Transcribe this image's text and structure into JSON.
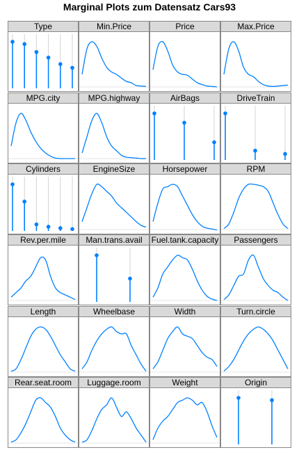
{
  "title": "Marginal Plots zum Datensatz Cars93",
  "colors": {
    "series": "#0080ff",
    "guide": "#d3d3d3",
    "strip_bg": "#d9d9d9",
    "border": "#888888"
  },
  "chart_data": [
    {
      "type": "bar",
      "title": "Type",
      "values": [
        1.0,
        0.95,
        0.78,
        0.66,
        0.52,
        0.44
      ]
    },
    {
      "type": "line",
      "title": "Min.Price",
      "values": [
        0.3,
        0.85,
        1.0,
        0.9,
        0.65,
        0.45,
        0.35,
        0.3,
        0.22,
        0.15,
        0.12,
        0.06,
        0.05,
        0.04
      ]
    },
    {
      "type": "line",
      "title": "Price",
      "values": [
        0.4,
        0.9,
        1.0,
        0.8,
        0.5,
        0.35,
        0.3,
        0.28,
        0.2,
        0.12,
        0.08,
        0.05,
        0.04,
        0.03
      ]
    },
    {
      "type": "line",
      "title": "Max.Price",
      "values": [
        0.3,
        0.85,
        1.0,
        0.8,
        0.45,
        0.3,
        0.25,
        0.15,
        0.08,
        0.05,
        0.04,
        0.05,
        0.06,
        0.07
      ]
    },
    {
      "type": "line",
      "title": "MPG.city",
      "values": [
        0.3,
        0.8,
        1.0,
        0.85,
        0.6,
        0.4,
        0.25,
        0.15,
        0.08,
        0.04,
        0.03,
        0.03,
        0.03,
        0.03
      ]
    },
    {
      "type": "line",
      "title": "MPG.highway",
      "values": [
        0.15,
        0.5,
        0.85,
        1.0,
        0.8,
        0.5,
        0.3,
        0.2,
        0.1,
        0.06,
        0.05,
        0.04,
        0.03,
        0.03
      ]
    },
    {
      "type": "bar",
      "title": "AirBags",
      "values": [
        1.0,
        0.8,
        0.38
      ]
    },
    {
      "type": "bar",
      "title": "DriveTrain",
      "values": [
        1.0,
        0.2,
        0.13
      ]
    },
    {
      "type": "bar",
      "title": "Cylinders",
      "values": [
        1.0,
        0.63,
        0.14,
        0.09,
        0.06,
        0.04
      ]
    },
    {
      "type": "line",
      "title": "EngineSize",
      "values": [
        0.2,
        0.5,
        0.8,
        1.0,
        0.95,
        0.85,
        0.75,
        0.6,
        0.5,
        0.4,
        0.3,
        0.2,
        0.12,
        0.08
      ]
    },
    {
      "type": "line",
      "title": "Horsepower",
      "values": [
        0.2,
        0.6,
        0.9,
        0.95,
        1.0,
        0.95,
        0.75,
        0.55,
        0.35,
        0.2,
        0.1,
        0.06,
        0.04,
        0.02
      ]
    },
    {
      "type": "line",
      "title": "RPM",
      "values": [
        0.05,
        0.15,
        0.4,
        0.7,
        0.9,
        1.0,
        1.0,
        0.98,
        0.95,
        0.85,
        0.6,
        0.35,
        0.15,
        0.05
      ]
    },
    {
      "type": "line",
      "title": "Rev.per.mile",
      "values": [
        0.1,
        0.2,
        0.3,
        0.45,
        0.55,
        0.75,
        0.95,
        0.9,
        0.55,
        0.3,
        0.2,
        0.15,
        0.1,
        0.05
      ]
    },
    {
      "type": "bar",
      "title": "Man.trans.avail",
      "values": [
        1.0,
        0.5
      ]
    },
    {
      "type": "line",
      "title": "Fuel.tank.capacity",
      "values": [
        0.1,
        0.3,
        0.6,
        0.75,
        0.9,
        1.0,
        0.95,
        0.9,
        0.7,
        0.45,
        0.25,
        0.12,
        0.06,
        0.03
      ]
    },
    {
      "type": "line",
      "title": "Passengers",
      "values": [
        0.05,
        0.15,
        0.35,
        0.55,
        0.6,
        0.9,
        1.0,
        0.75,
        0.5,
        0.35,
        0.25,
        0.2,
        0.1,
        0.03
      ]
    },
    {
      "type": "line",
      "title": "Length",
      "values": [
        0.05,
        0.1,
        0.3,
        0.55,
        0.8,
        0.95,
        1.0,
        0.95,
        0.8,
        0.6,
        0.4,
        0.25,
        0.1,
        0.05
      ]
    },
    {
      "type": "line",
      "title": "Wheelbase",
      "values": [
        0.1,
        0.25,
        0.5,
        0.7,
        0.85,
        0.95,
        1.0,
        0.9,
        0.85,
        0.85,
        0.6,
        0.4,
        0.2,
        0.05
      ]
    },
    {
      "type": "line",
      "title": "Width",
      "values": [
        0.1,
        0.25,
        0.5,
        0.75,
        0.9,
        1.0,
        0.85,
        0.8,
        0.75,
        0.6,
        0.45,
        0.35,
        0.3,
        0.15
      ]
    },
    {
      "type": "line",
      "title": "Turn.circle",
      "values": [
        0.05,
        0.15,
        0.3,
        0.5,
        0.7,
        0.85,
        0.95,
        1.0,
        0.95,
        0.85,
        0.7,
        0.5,
        0.3,
        0.1
      ]
    },
    {
      "type": "line",
      "title": "Rear.seat.room",
      "values": [
        0.05,
        0.1,
        0.25,
        0.45,
        0.7,
        0.95,
        1.0,
        0.9,
        0.8,
        0.6,
        0.35,
        0.2,
        0.1,
        0.05
      ]
    },
    {
      "type": "line",
      "title": "Luggage.room",
      "values": [
        0.05,
        0.1,
        0.3,
        0.55,
        0.75,
        0.85,
        1.0,
        0.8,
        0.6,
        0.7,
        0.55,
        0.35,
        0.2,
        0.05
      ]
    },
    {
      "type": "line",
      "title": "Weight",
      "values": [
        0.1,
        0.35,
        0.5,
        0.6,
        0.75,
        0.9,
        0.95,
        1.0,
        0.95,
        0.85,
        0.9,
        0.7,
        0.4,
        0.15
      ]
    },
    {
      "type": "bar",
      "title": "Origin",
      "values": [
        1.0,
        0.95
      ]
    }
  ]
}
